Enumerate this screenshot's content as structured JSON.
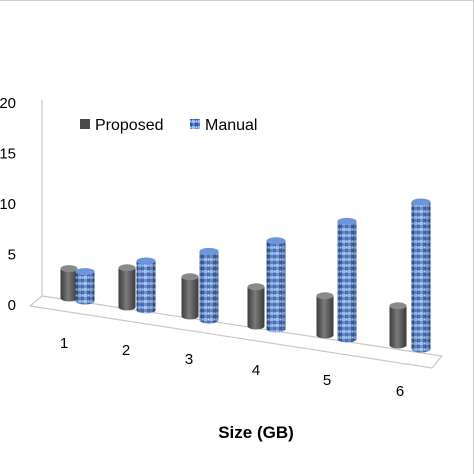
{
  "chart_data": {
    "type": "bar",
    "categories": [
      "1",
      "2",
      "3",
      "4",
      "5",
      "6"
    ],
    "series": [
      {
        "name": "Proposed",
        "values": [
          3,
          4,
          4,
          4,
          4,
          4
        ]
      },
      {
        "name": "Manual",
        "values": [
          3,
          5,
          7,
          9,
          12,
          15
        ]
      }
    ],
    "yticks": [
      "0",
      "5",
      "10",
      "15",
      "20"
    ],
    "ylim": [
      0,
      20
    ],
    "xlabel": "Size (GB)",
    "ylabel": "",
    "legend_position": "top-left",
    "grid": false,
    "colors": {
      "Proposed": "#5a5a5a",
      "Manual": "#4a78c8"
    }
  }
}
